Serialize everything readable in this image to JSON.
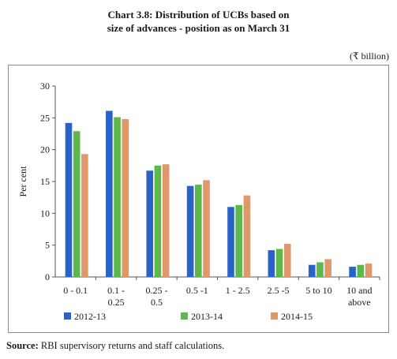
{
  "title_line1": "Chart 3.8: Distribution of UCBs based on",
  "title_line2": "size of advances - position as on March 31",
  "unit_label": "(₹ billion)",
  "source_label": "Source:",
  "source_text": "RBI supervisory returns and staff calculations.",
  "chart_data": {
    "type": "bar",
    "title": "Chart 3.8: Distribution of UCBs based on size of advances - position as on March 31",
    "ylabel": "Per cent",
    "xlabel": "",
    "ylim": [
      0,
      30
    ],
    "yticks": [
      0,
      5,
      10,
      15,
      20,
      25,
      30
    ],
    "grid": false,
    "legend_position": "bottom",
    "categories": [
      [
        "0 - 0.1"
      ],
      [
        "0.1 -",
        "0.25"
      ],
      [
        "0.25 -",
        "0.5"
      ],
      [
        "0.5 -1"
      ],
      [
        "1 - 2.5"
      ],
      [
        "2.5 -5"
      ],
      [
        "5 to 10"
      ],
      [
        "10 and",
        "above"
      ]
    ],
    "series": [
      {
        "name": "2012-13",
        "color": "#2a63c8",
        "values": [
          24.2,
          26.1,
          16.7,
          14.3,
          11.0,
          4.2,
          1.9,
          1.6
        ]
      },
      {
        "name": "2013-14",
        "color": "#5cb84a",
        "values": [
          22.9,
          25.1,
          17.5,
          14.5,
          11.3,
          4.4,
          2.3,
          1.9
        ]
      },
      {
        "name": "2014-15",
        "color": "#e0976a",
        "values": [
          19.3,
          24.8,
          17.7,
          15.2,
          12.8,
          5.2,
          2.8,
          2.1
        ]
      }
    ]
  }
}
